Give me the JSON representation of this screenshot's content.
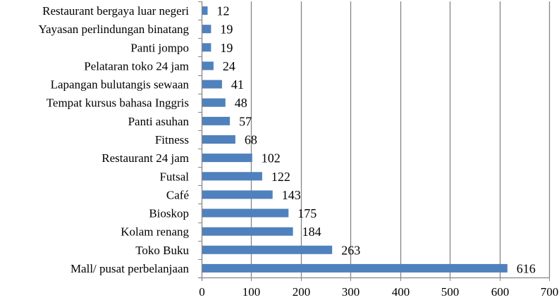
{
  "chart_data": {
    "type": "bar",
    "orientation": "horizontal",
    "categories": [
      "Restaurant bergaya luar negeri",
      "Yayasan perlindungan binatang",
      "Panti jompo",
      "Pelataran toko 24 jam",
      "Lapangan bulutangis sewaan",
      "Tempat kursus bahasa Inggris",
      "Panti asuhan",
      "Fitness",
      "Restaurant 24 jam",
      "Futsal",
      "Café",
      "Bioskop",
      "Kolam renang",
      "Toko Buku",
      "Mall/ pusat perbelanjaan"
    ],
    "values": [
      12,
      19,
      19,
      24,
      41,
      48,
      57,
      68,
      102,
      122,
      143,
      175,
      184,
      263,
      616
    ],
    "xlim": [
      0,
      700
    ],
    "xticks": [
      0,
      100,
      200,
      300,
      400,
      500,
      600,
      700
    ],
    "grid": "vertical",
    "data_labels": true,
    "bar_color": "#4F81BD",
    "grid_color": "#868686"
  }
}
